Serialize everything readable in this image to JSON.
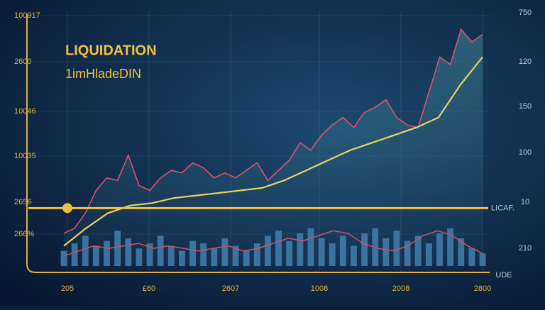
{
  "chart_data": {
    "type": "line",
    "title": "LIQUIDATION",
    "subtitle": "1imHladeDIN",
    "ylim": [
      0,
      100
    ],
    "x_labels": [
      "205",
      "£60",
      "2607",
      "1008",
      "2008",
      "2800"
    ],
    "left_axis_labels": [
      "100917",
      "2600",
      "10046",
      "10035",
      "2656",
      "266%"
    ],
    "right_axis_labels": [
      "750",
      "120",
      "150",
      "100",
      "10",
      "210"
    ],
    "corner_label": "UDE",
    "series": [
      {
        "color": "#e8506e",
        "values": [
          13,
          15,
          21,
          30,
          35,
          34,
          44,
          32,
          30,
          35,
          38,
          37,
          41,
          39,
          35,
          37,
          35,
          38,
          41,
          34,
          38,
          42,
          49,
          46,
          52,
          56,
          59,
          55,
          61,
          63,
          66,
          59,
          56,
          55,
          69,
          83,
          80,
          94,
          89,
          92
        ]
      },
      {
        "color": "#e8d060",
        "values": [
          8,
          15,
          21,
          24,
          25,
          27,
          28,
          29,
          30,
          31,
          34,
          38,
          42,
          46,
          49,
          52,
          55,
          59,
          72,
          83
        ]
      }
    ],
    "volume": {
      "color": "#4f8fc0",
      "values": [
        6,
        9,
        12,
        8,
        10,
        14,
        11,
        7,
        9,
        12,
        8,
        6,
        10,
        9,
        7,
        11,
        8,
        6,
        9,
        12,
        14,
        10,
        13,
        15,
        11,
        9,
        12,
        8,
        13,
        15,
        11,
        14,
        10,
        12,
        9,
        13,
        15,
        11,
        7,
        5
      ]
    },
    "volume_line": {
      "color": "#e05060",
      "values": [
        4,
        6,
        8,
        7,
        8,
        9,
        7,
        8,
        7,
        6,
        7,
        8,
        6,
        7,
        9,
        11,
        10,
        12,
        14,
        13,
        9,
        7,
        6,
        8,
        12,
        14,
        12,
        8,
        5
      ]
    },
    "hline": {
      "value": 23,
      "label": "LICAF.",
      "color": "#f0c040"
    }
  }
}
